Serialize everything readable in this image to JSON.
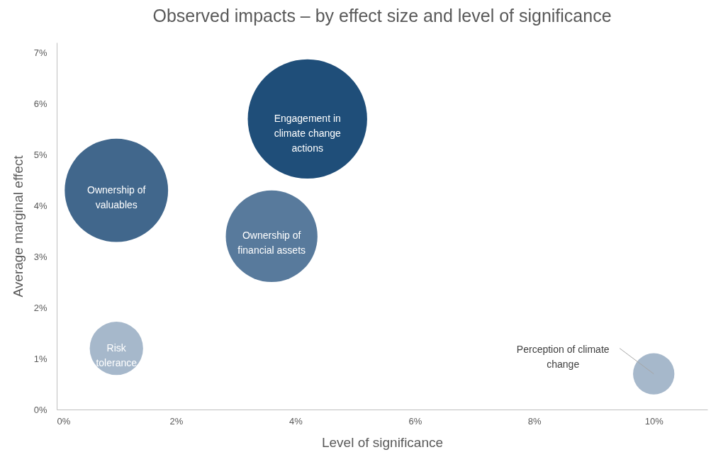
{
  "chart_data": {
    "type": "bubble",
    "title": "Observed impacts – by effect size and level of significance",
    "xlabel": "Level of significance",
    "ylabel": "Average marginal effect",
    "xlim": [
      0,
      10.9
    ],
    "ylim": [
      0,
      7.2
    ],
    "xticks": [
      {
        "value": 0,
        "label": "0%"
      },
      {
        "value": 2,
        "label": "2%"
      },
      {
        "value": 4,
        "label": "4%"
      },
      {
        "value": 6,
        "label": "6%"
      },
      {
        "value": 8,
        "label": "8%"
      },
      {
        "value": 10,
        "label": "10%"
      }
    ],
    "yticks": [
      {
        "value": 0,
        "label": "0%"
      },
      {
        "value": 1,
        "label": "1%"
      },
      {
        "value": 2,
        "label": "2%"
      },
      {
        "value": 3,
        "label": "3%"
      },
      {
        "value": 4,
        "label": "4%"
      },
      {
        "value": 5,
        "label": "5%"
      },
      {
        "value": 6,
        "label": "6%"
      },
      {
        "value": 7,
        "label": "7%"
      }
    ],
    "grid": false,
    "legend": false,
    "series": [
      {
        "name": "Engagement in climate change actions",
        "color": "#1f4e79",
        "x": [
          4.2
        ],
        "values": [
          5.7
        ],
        "sizes": [
          1
        ]
      },
      {
        "name": "Ownership of valuables",
        "color": "#41678c",
        "x": [
          1.0
        ],
        "values": [
          4.3
        ],
        "sizes": [
          0.75
        ]
      },
      {
        "name": "Ownership of financial assets",
        "color": "#587a9c",
        "x": [
          3.6
        ],
        "values": [
          3.4
        ],
        "sizes": [
          0.59
        ]
      },
      {
        "name": "Risk tolerance",
        "color": "#a6b8cb",
        "x": [
          1.0
        ],
        "values": [
          1.2
        ],
        "sizes": [
          0.2
        ]
      },
      {
        "name": "Perception of climate change",
        "color": "#a6b8cb",
        "x": [
          10.0
        ],
        "values": [
          0.7
        ],
        "sizes": [
          0.12
        ]
      }
    ]
  }
}
